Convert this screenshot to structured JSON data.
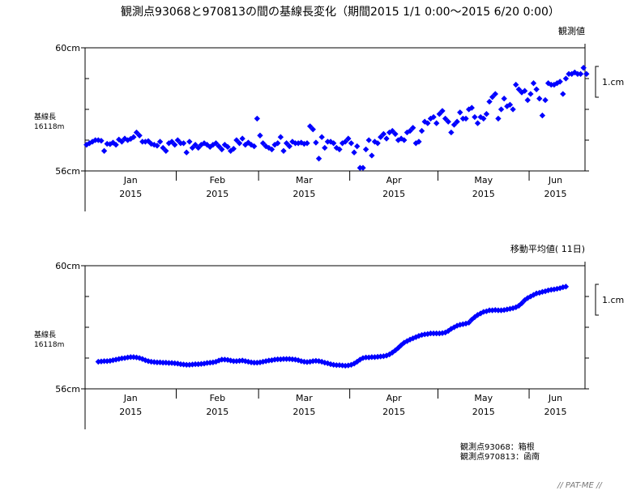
{
  "title": "観測点93068と970813の間の基線長変化（期間2015 1/1 0:00〜2015 6/20 0:00）",
  "footer": {
    "station1": "観測点93068：箱根",
    "station2": "観測点970813：函南",
    "logo": "// PAT-ME //"
  },
  "colors": {
    "marker": "#0000ff",
    "axis": "#000000"
  },
  "chart_data": [
    {
      "type": "scatter",
      "title": "観測値",
      "ylabel": "基線長",
      "ylabel_sub": "16118m",
      "ylim": [
        56,
        60
      ],
      "ytick_labels": [
        "60cm",
        "56cm"
      ],
      "scale_label": "1.cm",
      "x_start": "2015-01-01",
      "month_labels": [
        "Jan",
        "Feb",
        "Mar",
        "Apr",
        "May",
        "Jun"
      ],
      "year_label": "2015",
      "month_start_days": [
        0,
        31,
        59,
        90,
        120,
        151
      ],
      "total_days": 170,
      "start_day": 0,
      "values": [
        56.85,
        56.9,
        56.95,
        57.0,
        57.0,
        56.98,
        56.65,
        56.88,
        56.87,
        56.92,
        56.85,
        57.02,
        56.95,
        57.05,
        57.0,
        57.04,
        57.1,
        57.25,
        57.15,
        56.95,
        56.95,
        56.97,
        56.88,
        56.85,
        56.82,
        56.95,
        56.75,
        56.65,
        56.9,
        56.95,
        56.85,
        57.0,
        56.9,
        56.9,
        56.6,
        56.95,
        56.75,
        56.85,
        56.75,
        56.85,
        56.9,
        56.85,
        56.78,
        56.85,
        56.9,
        56.8,
        56.7,
        56.85,
        56.78,
        56.65,
        56.72,
        57.0,
        56.9,
        57.05,
        56.85,
        56.92,
        56.85,
        56.8,
        57.7,
        57.15,
        56.9,
        56.8,
        56.75,
        56.7,
        56.85,
        56.9,
        57.1,
        56.65,
        56.9,
        56.8,
        56.95,
        56.9,
        56.9,
        56.92,
        56.88,
        56.9,
        57.45,
        57.35,
        56.92,
        56.4,
        57.1,
        56.75,
        56.95,
        56.95,
        56.9,
        56.75,
        56.7,
        56.9,
        56.95,
        57.05,
        56.9,
        56.6,
        56.8,
        56.1,
        56.1,
        56.7,
        57.0,
        56.5,
        56.95,
        56.9,
        57.1,
        57.2,
        57.05,
        57.25,
        57.3,
        57.2,
        57.0,
        57.05,
        57.0,
        57.25,
        57.3,
        57.4,
        56.9,
        56.95,
        57.3,
        57.6,
        57.55,
        57.7,
        57.75,
        57.55,
        57.85,
        57.95,
        57.7,
        57.6,
        57.25,
        57.5,
        57.6,
        57.9,
        57.7,
        57.7,
        58.0,
        58.05,
        57.75,
        57.55,
        57.75,
        57.7,
        57.85,
        58.25,
        58.4,
        58.5,
        57.7,
        58.0,
        58.35,
        58.1,
        58.15,
        58.0,
        58.8,
        58.65,
        58.55,
        58.6,
        58.3,
        58.5,
        58.85,
        58.65,
        58.35,
        57.8,
        58.3,
        58.85,
        58.8,
        58.8,
        58.85,
        58.9,
        58.5,
        59.0,
        59.15,
        59.15,
        59.2,
        59.15,
        59.15,
        59.35,
        59.15
      ]
    },
    {
      "type": "scatter",
      "title": "移動平均値( 11日)",
      "ylabel": "基線長",
      "ylabel_sub": "16118m",
      "ylim": [
        56,
        60
      ],
      "ytick_labels": [
        "60cm",
        "56cm"
      ],
      "scale_label": "1.cm",
      "x_start": "2015-01-01",
      "month_labels": [
        "Jan",
        "Feb",
        "Mar",
        "Apr",
        "May",
        "Jun"
      ],
      "year_label": "2015",
      "month_start_days": [
        0,
        31,
        59,
        90,
        120,
        151
      ],
      "total_days": 170,
      "start_day": 4,
      "values": [
        56.88,
        56.89,
        56.9,
        56.9,
        56.91,
        56.93,
        56.95,
        56.97,
        56.99,
        57.0,
        57.02,
        57.03,
        57.03,
        57.02,
        57.0,
        56.97,
        56.93,
        56.9,
        56.88,
        56.87,
        56.86,
        56.86,
        56.85,
        56.85,
        56.84,
        56.84,
        56.83,
        56.82,
        56.8,
        56.79,
        56.78,
        56.78,
        56.79,
        56.8,
        56.8,
        56.81,
        56.82,
        56.84,
        56.85,
        56.86,
        56.88,
        56.92,
        56.95,
        56.95,
        56.94,
        56.92,
        56.9,
        56.9,
        56.91,
        56.92,
        56.9,
        56.88,
        56.86,
        56.85,
        56.85,
        56.86,
        56.88,
        56.9,
        56.92,
        56.93,
        56.95,
        56.96,
        56.96,
        56.97,
        56.97,
        56.97,
        56.96,
        56.95,
        56.93,
        56.9,
        56.88,
        56.87,
        56.88,
        56.9,
        56.91,
        56.9,
        56.88,
        56.85,
        56.83,
        56.8,
        56.78,
        56.77,
        56.77,
        56.76,
        56.75,
        56.76,
        56.78,
        56.82,
        56.88,
        56.95,
        57.0,
        57.02,
        57.02,
        57.03,
        57.03,
        57.04,
        57.05,
        57.06,
        57.08,
        57.12,
        57.18,
        57.25,
        57.33,
        57.42,
        57.5,
        57.55,
        57.6,
        57.64,
        57.68,
        57.72,
        57.75,
        57.77,
        57.78,
        57.8,
        57.8,
        57.8,
        57.8,
        57.81,
        57.83,
        57.88,
        57.95,
        58.0,
        58.05,
        58.08,
        58.1,
        58.12,
        58.15,
        58.25,
        58.33,
        58.4,
        58.45,
        58.5,
        58.52,
        58.55,
        58.55,
        58.56,
        58.55,
        58.55,
        58.56,
        58.58,
        58.6,
        58.62,
        58.65,
        58.7,
        58.78,
        58.88,
        58.95,
        59.0,
        59.05,
        59.1,
        59.12,
        59.15,
        59.17,
        59.2,
        59.22,
        59.23,
        59.25,
        59.27,
        59.3,
        59.32
      ]
    }
  ]
}
